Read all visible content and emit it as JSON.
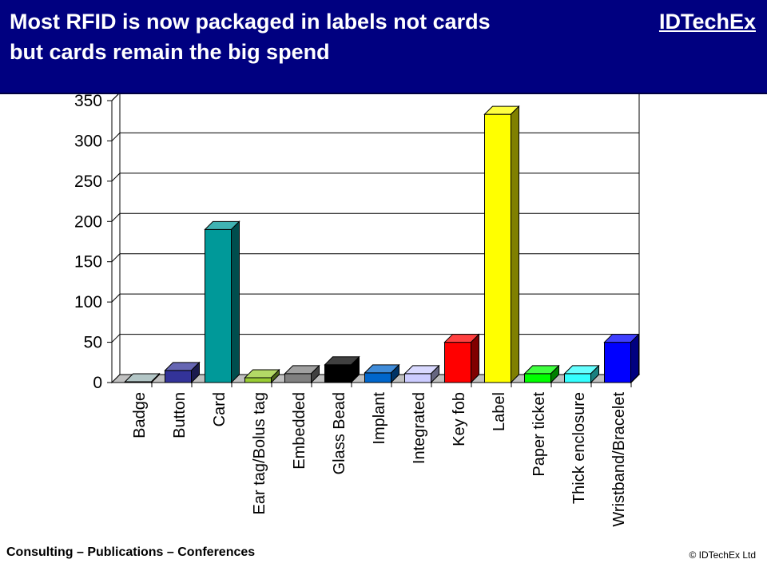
{
  "header": {
    "title_line1": "Most RFID is now packaged in labels not cards",
    "title_line2": "but cards remain the big spend",
    "brand": "IDTechEx"
  },
  "footer": {
    "left": "Consulting – Publications – Conferences",
    "right": "© IDTechEx Ltd"
  },
  "colors": {
    "header_bg": "#000080",
    "header_text": "#ffffff"
  },
  "chart_data": {
    "type": "bar",
    "style": "3d",
    "categories": [
      "Badge",
      "Button",
      "Card",
      "Ear tag/Bolus tag",
      "Embedded",
      "Glass Bead",
      "Implant",
      "Integrated",
      "Key fob",
      "Label",
      "Paper ticket",
      "Thick enclosure",
      "Wristband/Bracelet"
    ],
    "values": [
      1,
      15,
      190,
      6,
      11,
      22,
      12,
      11,
      50,
      333,
      11,
      11,
      50
    ],
    "bar_colors": [
      "#99b3b3",
      "#333399",
      "#009999",
      "#99cc33",
      "#808080",
      "#000000",
      "#0066cc",
      "#ccccff",
      "#ff0000",
      "#ffff00",
      "#00ff00",
      "#33ffff",
      "#0000ff"
    ],
    "yticks": [
      0,
      50,
      100,
      150,
      200,
      250,
      300,
      350
    ],
    "ylim": [
      0,
      350
    ],
    "grid": true,
    "legend": "none"
  }
}
